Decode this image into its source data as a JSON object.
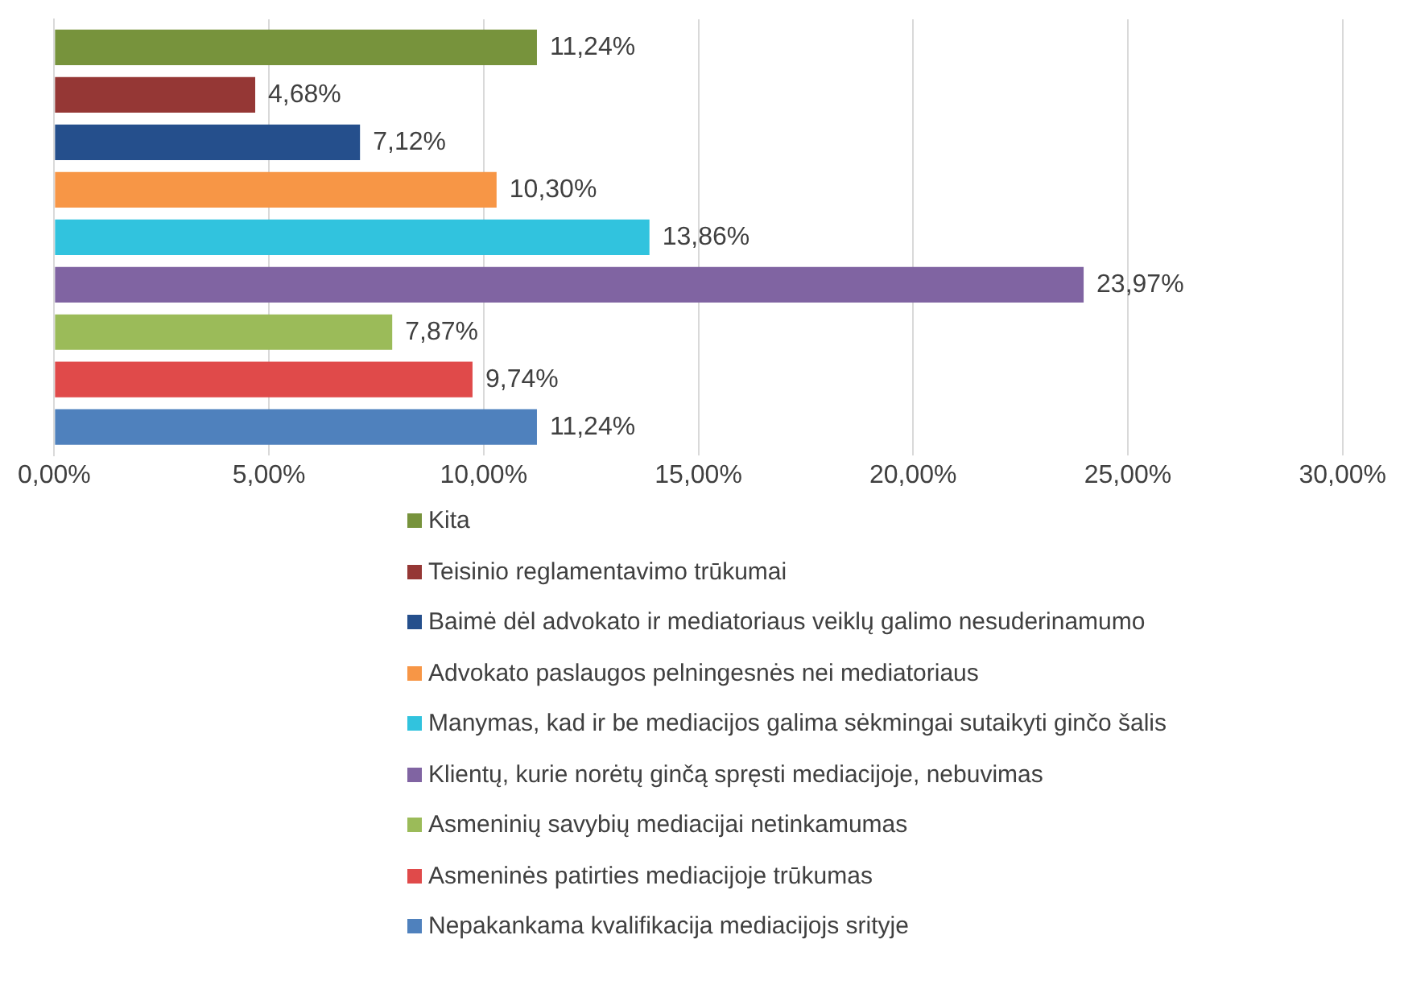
{
  "chart_data": {
    "type": "bar",
    "orientation": "horizontal",
    "categories": [
      null
    ],
    "series": [
      {
        "name": "Kita",
        "color": "#77933c",
        "values": [
          11.24
        ],
        "value_labels": [
          "11,24%"
        ]
      },
      {
        "name": "Teisinio reglamentavimo trūkumai",
        "color": "#953735",
        "values": [
          4.68
        ],
        "value_labels": [
          "4,68%"
        ]
      },
      {
        "name": "Baimė dėl advokato ir mediatoriaus veiklų galimo nesuderinamumo",
        "color": "#254f8c",
        "values": [
          7.12
        ],
        "value_labels": [
          "7,12%"
        ]
      },
      {
        "name": "Advokato paslaugos pelningesnės nei mediatoriaus",
        "color": "#f79646",
        "values": [
          10.3
        ],
        "value_labels": [
          "10,30%"
        ]
      },
      {
        "name": "Manymas, kad ir be mediacijos galima sėkmingai sutaikyti ginčo šalis",
        "color": "#31c3de",
        "values": [
          13.86
        ],
        "value_labels": [
          "13,86%"
        ]
      },
      {
        "name": "Klientų, kurie norėtų ginčą spręsti mediacijoje, nebuvimas",
        "color": "#8064a2",
        "values": [
          23.97
        ],
        "value_labels": [
          "23,97%"
        ]
      },
      {
        "name": "Asmeninių savybių mediacijai netinkamumas",
        "color": "#9bbb59",
        "values": [
          7.87
        ],
        "value_labels": [
          "7,87%"
        ]
      },
      {
        "name": "Asmeninės patirties mediacijoje trūkumas",
        "color": "#e04a4a",
        "values": [
          9.74
        ],
        "value_labels": [
          "9,74%"
        ]
      },
      {
        "name": "Nepakankama kvalifikacija mediacijojs srityje",
        "color": "#4f81bd",
        "values": [
          11.24
        ],
        "value_labels": [
          "11,24%"
        ]
      }
    ],
    "xlim": [
      0,
      30
    ],
    "xticks": [
      {
        "value": 0,
        "label": "0,00%"
      },
      {
        "value": 5,
        "label": "5,00%"
      },
      {
        "value": 10,
        "label": "10,00%"
      },
      {
        "value": 15,
        "label": "15,00%"
      },
      {
        "value": 20,
        "label": "20,00%"
      },
      {
        "value": 25,
        "label": "25,00%"
      },
      {
        "value": 30,
        "label": "30,00%"
      }
    ],
    "grid": "x",
    "legend": "bottom"
  }
}
